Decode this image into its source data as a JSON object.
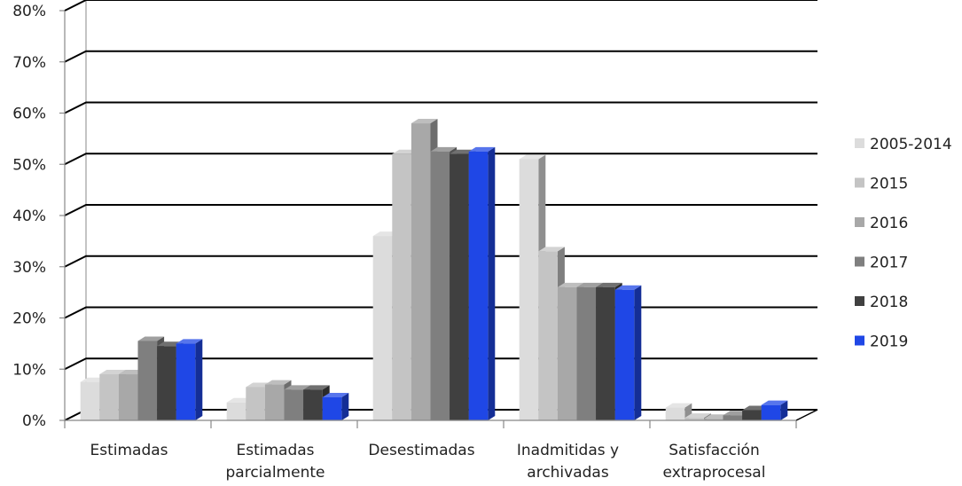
{
  "chart_data": {
    "type": "bar",
    "style": "3d-clustered-column",
    "title": "",
    "xlabel": "",
    "ylabel": "",
    "ylim": [
      0,
      80
    ],
    "y_ticks": [
      "0%",
      "10%",
      "20%",
      "30%",
      "40%",
      "50%",
      "60%",
      "70%",
      "80%"
    ],
    "grid": true,
    "legend_position": "right",
    "categories": [
      [
        "Estimadas"
      ],
      [
        "Estimadas",
        "parcialmente"
      ],
      [
        "Desestimadas"
      ],
      [
        "Inadmitidas y",
        "archivadas"
      ],
      [
        "Satisfacción",
        "extraprocesal"
      ]
    ],
    "series": [
      {
        "name": "2005-2014",
        "color": "#dcdcdc",
        "values": [
          7.5,
          3.5,
          36,
          51,
          2.5
        ]
      },
      {
        "name": "2015",
        "color": "#c4c4c4",
        "values": [
          9,
          6.5,
          52,
          33,
          0.5
        ]
      },
      {
        "name": "2016",
        "color": "#a8a8a8",
        "values": [
          9,
          7,
          58,
          26,
          0.3
        ]
      },
      {
        "name": "2017",
        "color": "#7f7f7f",
        "values": [
          15.5,
          6,
          52.5,
          26,
          1
        ]
      },
      {
        "name": "2018",
        "color": "#404040",
        "values": [
          14.5,
          6,
          52,
          26,
          2
        ]
      },
      {
        "name": "2019",
        "color": "#1f47e6",
        "values": [
          15,
          4.5,
          52.5,
          25.5,
          3
        ]
      }
    ]
  }
}
